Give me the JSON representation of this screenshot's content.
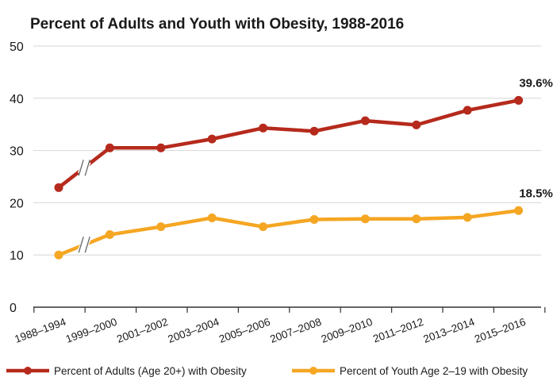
{
  "chart_data": {
    "type": "line",
    "title": "Percent of Adults and Youth with Obesity, 1988-2016",
    "categories": [
      "1988–1994",
      "1999–2000",
      "2001–2002",
      "2003–2004",
      "2005–2006",
      "2007–2008",
      "2009–2010",
      "2011–2012",
      "2013–2014",
      "2015–2016"
    ],
    "ylim": [
      0,
      50
    ],
    "yticks": [
      "0",
      "10",
      "20",
      "30",
      "40",
      "50"
    ],
    "grid": true,
    "legend_position": "bottom",
    "series": [
      {
        "name": "Percent of Adults (Age 20+) with Obesity",
        "color": "#b52a1c",
        "values": [
          22.9,
          30.5,
          30.5,
          32.2,
          34.3,
          33.7,
          35.7,
          34.9,
          37.7,
          39.6
        ],
        "end_label": "39.6%"
      },
      {
        "name": "Percent of Youth Age 2–19 with Obesity",
        "color": "#f5a623",
        "values": [
          10.0,
          13.9,
          15.4,
          17.1,
          15.4,
          16.8,
          16.9,
          16.9,
          17.2,
          18.5
        ],
        "end_label": "18.5%"
      }
    ]
  }
}
